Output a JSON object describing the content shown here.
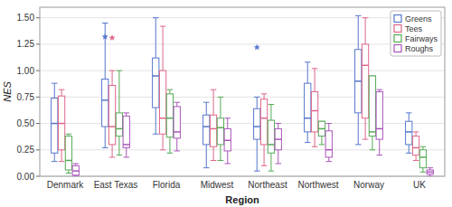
{
  "chart_data": {
    "type": "box",
    "xlabel": "Region",
    "ylabel": "NES",
    "categories": [
      "Denmark",
      "East Texas",
      "Florida",
      "Midwest",
      "Northeast",
      "Northwest",
      "Norway",
      "UK"
    ],
    "ylim": [
      0.0,
      1.6
    ],
    "yticks": [
      {
        "value": 0.0,
        "label": "0.00"
      },
      {
        "value": 0.25,
        "label": "0.25"
      },
      {
        "value": 0.5,
        "label": "0.50"
      },
      {
        "value": 0.75,
        "label": "0.75"
      },
      {
        "value": 1.0,
        "label": "1.00"
      },
      {
        "value": 1.25,
        "label": "1.25"
      },
      {
        "value": 1.5,
        "label": "1.50"
      }
    ],
    "grid": true,
    "legend": "upper-right",
    "series": [
      {
        "name": "Greens",
        "color": "#5577cc",
        "values": [
          {
            "whislo": 0.14,
            "q1": 0.22,
            "med": 0.5,
            "q3": 0.74,
            "whishi": 0.88,
            "fliers": []
          },
          {
            "whislo": 0.27,
            "q1": 0.47,
            "med": 0.72,
            "q3": 0.92,
            "whishi": 1.45,
            "fliers": [
              1.32
            ]
          },
          {
            "whislo": 0.4,
            "q1": 0.65,
            "med": 0.95,
            "q3": 1.12,
            "whishi": 1.5,
            "fliers": []
          },
          {
            "whislo": 0.08,
            "q1": 0.3,
            "med": 0.47,
            "q3": 0.58,
            "whishi": 0.7,
            "fliers": []
          },
          {
            "whislo": 0.05,
            "q1": 0.35,
            "med": 0.47,
            "q3": 0.64,
            "whishi": 0.75,
            "fliers": [
              1.22
            ]
          },
          {
            "whislo": 0.32,
            "q1": 0.42,
            "med": 0.55,
            "q3": 0.88,
            "whishi": 1.08,
            "fliers": []
          },
          {
            "whislo": 0.3,
            "q1": 0.6,
            "med": 0.9,
            "q3": 1.2,
            "whishi": 1.52,
            "fliers": []
          },
          {
            "whislo": 0.22,
            "q1": 0.3,
            "med": 0.42,
            "q3": 0.52,
            "whishi": 0.6,
            "fliers": []
          }
        ]
      },
      {
        "name": "Tees",
        "color": "#dd6688",
        "values": [
          {
            "whislo": 0.14,
            "q1": 0.25,
            "med": 0.5,
            "q3": 0.76,
            "whishi": 0.82,
            "fliers": []
          },
          {
            "whislo": 0.18,
            "q1": 0.3,
            "med": 0.47,
            "q3": 0.86,
            "whishi": 1.0,
            "fliers": [
              1.31
            ]
          },
          {
            "whislo": 0.25,
            "q1": 0.4,
            "med": 0.55,
            "q3": 1.0,
            "whishi": 1.42,
            "fliers": []
          },
          {
            "whislo": 0.15,
            "q1": 0.28,
            "med": 0.45,
            "q3": 0.58,
            "whishi": 0.82,
            "fliers": []
          },
          {
            "whislo": 0.1,
            "q1": 0.3,
            "med": 0.55,
            "q3": 0.73,
            "whishi": 0.78,
            "fliers": []
          },
          {
            "whislo": 0.28,
            "q1": 0.42,
            "med": 0.62,
            "q3": 0.8,
            "whishi": 1.02,
            "fliers": []
          },
          {
            "whislo": 0.35,
            "q1": 0.55,
            "med": 1.05,
            "q3": 1.25,
            "whishi": 1.5,
            "fliers": []
          },
          {
            "whislo": 0.15,
            "q1": 0.2,
            "med": 0.27,
            "q3": 0.38,
            "whishi": 0.42,
            "fliers": []
          }
        ]
      },
      {
        "name": "Fairways",
        "color": "#55aa55",
        "values": [
          {
            "whislo": 0.03,
            "q1": 0.06,
            "med": 0.15,
            "q3": 0.38,
            "whishi": 0.4,
            "fliers": []
          },
          {
            "whislo": 0.2,
            "q1": 0.38,
            "med": 0.45,
            "q3": 0.6,
            "whishi": 1.0,
            "fliers": []
          },
          {
            "whislo": 0.22,
            "q1": 0.37,
            "med": 0.55,
            "q3": 0.78,
            "whishi": 0.82,
            "fliers": []
          },
          {
            "whislo": 0.15,
            "q1": 0.3,
            "med": 0.46,
            "q3": 0.55,
            "whishi": 0.75,
            "fliers": []
          },
          {
            "whislo": 0.05,
            "q1": 0.22,
            "med": 0.3,
            "q3": 0.53,
            "whishi": 0.68,
            "fliers": []
          },
          {
            "whislo": 0.3,
            "q1": 0.38,
            "med": 0.45,
            "q3": 0.52,
            "whishi": 0.52,
            "fliers": []
          },
          {
            "whislo": 0.25,
            "q1": 0.38,
            "med": 0.42,
            "q3": 0.95,
            "whishi": 0.95,
            "fliers": []
          },
          {
            "whislo": 0.04,
            "q1": 0.08,
            "med": 0.18,
            "q3": 0.25,
            "whishi": 0.28,
            "fliers": []
          }
        ]
      },
      {
        "name": "Roughs",
        "color": "#aa55bb",
        "values": [
          {
            "whislo": 0.0,
            "q1": 0.01,
            "med": 0.05,
            "q3": 0.1,
            "whishi": 0.12,
            "fliers": []
          },
          {
            "whislo": 0.18,
            "q1": 0.27,
            "med": 0.3,
            "q3": 0.57,
            "whishi": 0.6,
            "fliers": []
          },
          {
            "whislo": 0.24,
            "q1": 0.36,
            "med": 0.42,
            "q3": 0.66,
            "whishi": 0.7,
            "fliers": []
          },
          {
            "whislo": 0.12,
            "q1": 0.24,
            "med": 0.34,
            "q3": 0.45,
            "whishi": 0.55,
            "fliers": []
          },
          {
            "whislo": 0.12,
            "q1": 0.25,
            "med": 0.35,
            "q3": 0.45,
            "whishi": 0.5,
            "fliers": []
          },
          {
            "whislo": 0.14,
            "q1": 0.18,
            "med": 0.25,
            "q3": 0.43,
            "whishi": 0.5,
            "fliers": []
          },
          {
            "whislo": 0.2,
            "q1": 0.35,
            "med": 0.45,
            "q3": 0.8,
            "whishi": 0.82,
            "fliers": []
          },
          {
            "whislo": 0.0,
            "q1": 0.02,
            "med": 0.04,
            "q3": 0.06,
            "whishi": 0.08,
            "fliers": []
          }
        ]
      }
    ]
  }
}
